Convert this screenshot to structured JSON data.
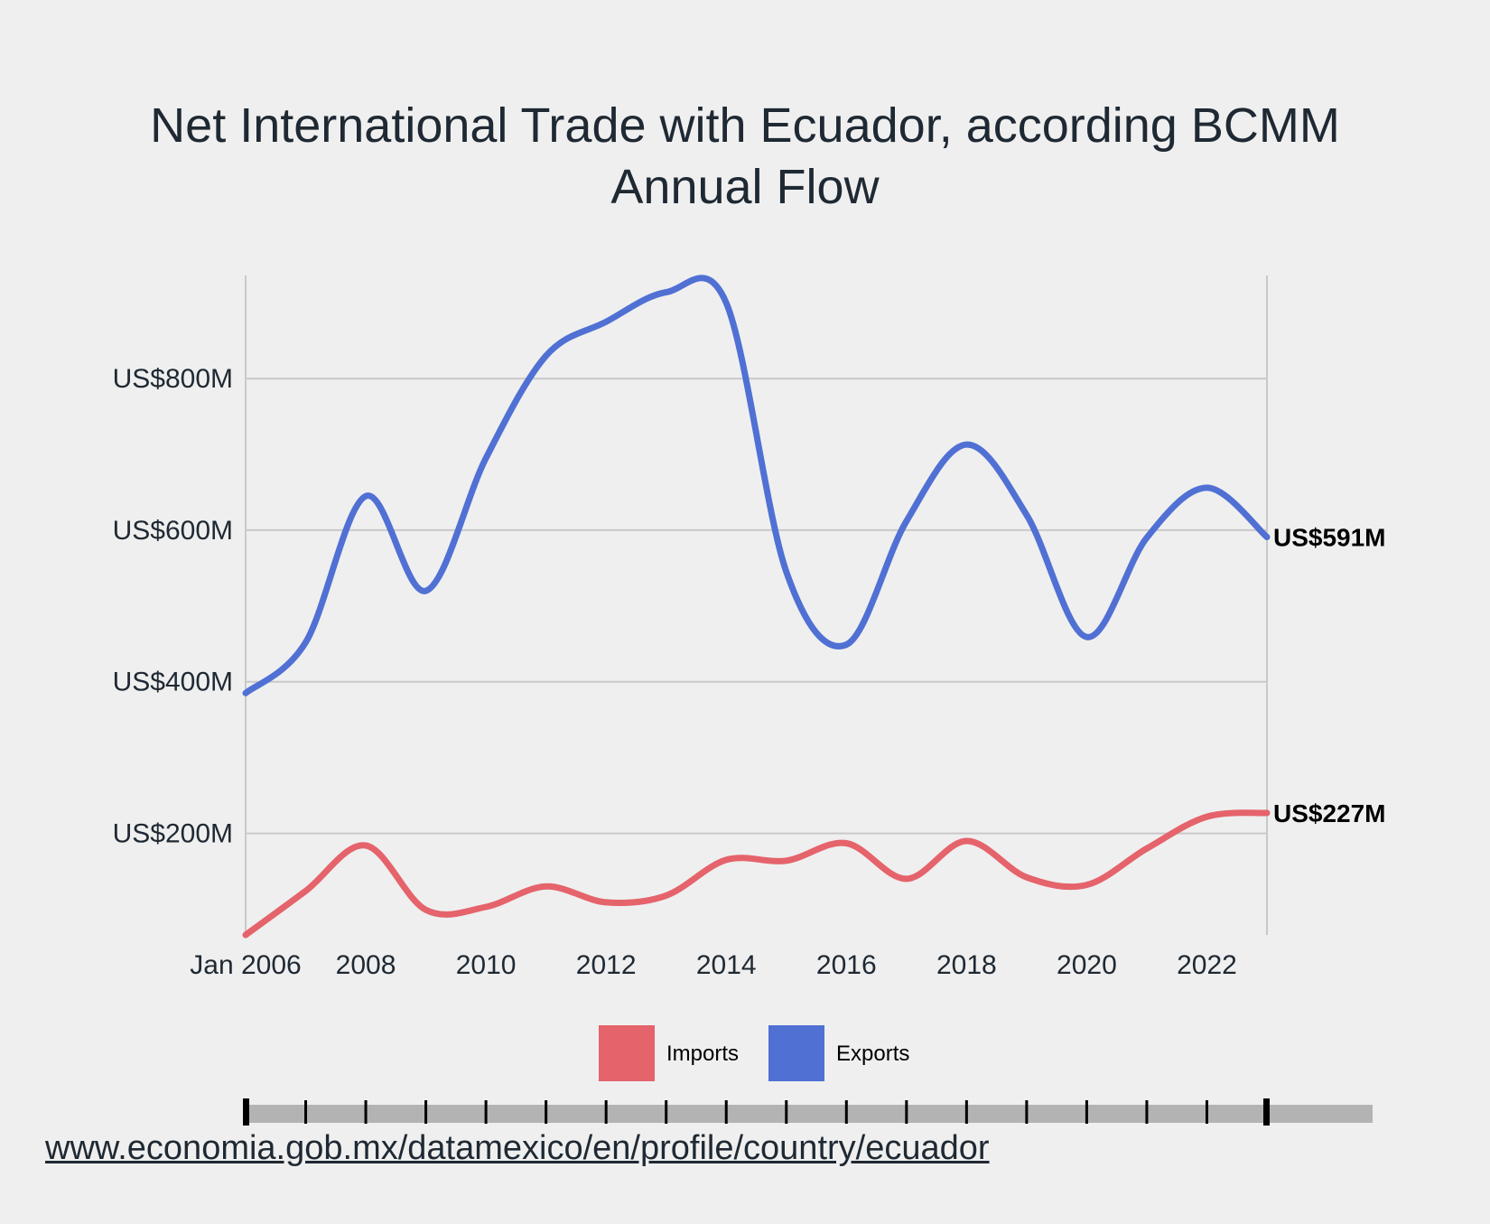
{
  "source_url": "www.economia.gob.mx/datamexico/en/profile/country/ecuador",
  "chart_data": {
    "type": "line",
    "title": "Net International Trade with Ecuador, according BCMM",
    "subtitle": "Annual Flow",
    "x": [
      "2006",
      "2007",
      "2008",
      "2009",
      "2010",
      "2011",
      "2012",
      "2013",
      "2014",
      "2015",
      "2016",
      "2017",
      "2018",
      "2019",
      "2020",
      "2021",
      "2022",
      "2023"
    ],
    "x_tick_labels": [
      "Jan 2006",
      "2008",
      "2010",
      "2012",
      "2014",
      "2016",
      "2018",
      "2020",
      "2022"
    ],
    "y_tick_labels": [
      "US$200M",
      "US$400M",
      "US$600M",
      "US$800M"
    ],
    "y_ticks": [
      200,
      400,
      600,
      800
    ],
    "ylim": [
      66,
      936
    ],
    "grid": true,
    "legend_position": "bottom",
    "series": [
      {
        "name": "Imports",
        "color": "#e5636b",
        "values": [
          66,
          124,
          184,
          99,
          103,
          130,
          109,
          118,
          165,
          164,
          187,
          140,
          190,
          142,
          132,
          180,
          222,
          227
        ],
        "end_label": "US$227M"
      },
      {
        "name": "Exports",
        "color": "#5070d4",
        "values": [
          385,
          452,
          645,
          520,
          695,
          830,
          875,
          914,
          900,
          545,
          449,
          612,
          713,
          620,
          459,
          590,
          656,
          591
        ],
        "end_label": "US$591M"
      }
    ],
    "slider_ticks": 18
  }
}
